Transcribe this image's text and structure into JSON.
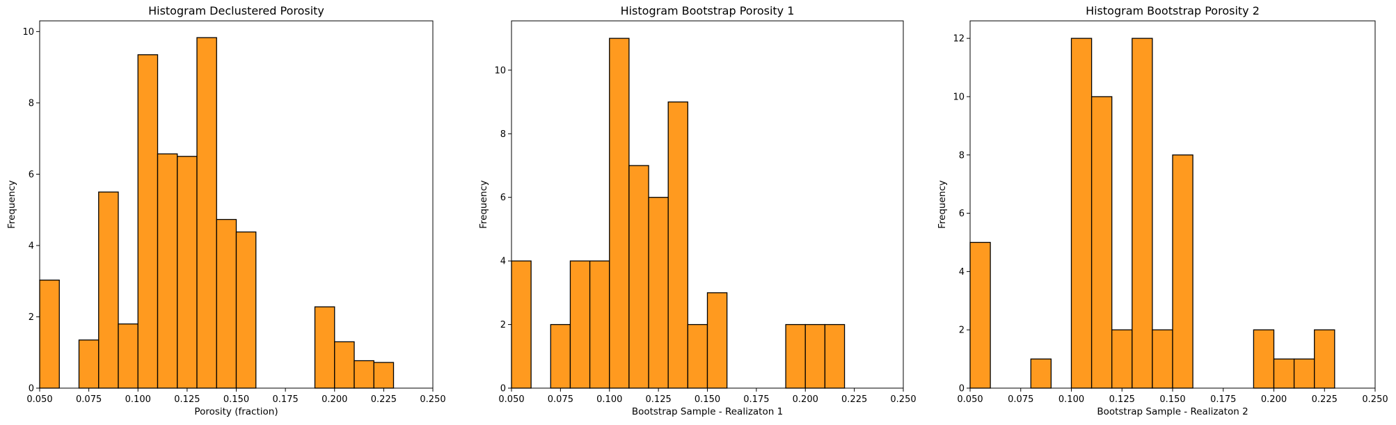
{
  "bar_color": "#ff9a1f",
  "bar_edge": "#000000",
  "charts": [
    {
      "title": "Histogram Declustered Porosity",
      "xlabel": "Porosity (fraction)",
      "ylabel": "Frequency",
      "xticks": [
        "0.050",
        "0.075",
        "0.100",
        "0.125",
        "0.150",
        "0.175",
        "0.200",
        "0.225",
        "0.250"
      ],
      "yticks": [
        "0",
        "2",
        "4",
        "6",
        "8",
        "10"
      ]
    },
    {
      "title": "Histogram Bootstrap Porosity 1",
      "xlabel": "Bootstrap Sample - Realizaton 1",
      "ylabel": "Frequency",
      "xticks": [
        "0.050",
        "0.075",
        "0.100",
        "0.125",
        "0.150",
        "0.175",
        "0.200",
        "0.225",
        "0.250"
      ],
      "yticks": [
        "0",
        "2",
        "4",
        "6",
        "8",
        "10"
      ]
    },
    {
      "title": "Histogram Bootstrap Porosity 2",
      "xlabel": "Bootstrap Sample - Realizaton 2",
      "ylabel": "Frequency",
      "xticks": [
        "0.050",
        "0.075",
        "0.100",
        "0.125",
        "0.150",
        "0.175",
        "0.200",
        "0.225",
        "0.250"
      ],
      "yticks": [
        "0",
        "2",
        "4",
        "6",
        "8",
        "10",
        "12"
      ]
    }
  ],
  "chart_data": [
    {
      "type": "bar",
      "title": "Histogram Declustered Porosity",
      "xlabel": "Porosity (fraction)",
      "ylabel": "Frequency",
      "xlim": [
        0.05,
        0.25
      ],
      "ylim": [
        0,
        10.3
      ],
      "bin_edges": [
        0.05,
        0.06,
        0.07,
        0.08,
        0.09,
        0.1,
        0.11,
        0.12,
        0.13,
        0.14,
        0.15,
        0.16,
        0.17,
        0.18,
        0.19,
        0.2,
        0.21,
        0.22,
        0.23
      ],
      "values": [
        3.03,
        0,
        1.35,
        5.5,
        1.8,
        9.35,
        6.57,
        6.5,
        9.83,
        4.73,
        4.38,
        0,
        0,
        0,
        2.28,
        1.3,
        0.77,
        0.72
      ]
    },
    {
      "type": "bar",
      "title": "Histogram Bootstrap Porosity 1",
      "xlabel": "Bootstrap Sample - Realizaton 1",
      "ylabel": "Frequency",
      "xlim": [
        0.05,
        0.25
      ],
      "ylim": [
        0,
        11.55
      ],
      "bin_edges": [
        0.05,
        0.06,
        0.07,
        0.08,
        0.09,
        0.1,
        0.11,
        0.12,
        0.13,
        0.14,
        0.15,
        0.16,
        0.17,
        0.18,
        0.19,
        0.2,
        0.21,
        0.22
      ],
      "values": [
        4,
        0,
        2,
        4,
        4,
        11,
        7,
        6,
        9,
        2,
        3,
        0,
        0,
        0,
        2,
        2,
        2
      ]
    },
    {
      "type": "bar",
      "title": "Histogram Bootstrap Porosity 2",
      "xlabel": "Bootstrap Sample - Realizaton 2",
      "ylabel": "Frequency",
      "xlim": [
        0.05,
        0.25
      ],
      "ylim": [
        0,
        12.6
      ],
      "bin_edges": [
        0.05,
        0.06,
        0.07,
        0.08,
        0.09,
        0.1,
        0.11,
        0.12,
        0.13,
        0.14,
        0.15,
        0.16,
        0.17,
        0.18,
        0.19,
        0.2,
        0.21,
        0.22,
        0.23
      ],
      "values": [
        5,
        0,
        0,
        1,
        0,
        12,
        10,
        2,
        12,
        2,
        8,
        0,
        0,
        0,
        2,
        1,
        1,
        2
      ]
    }
  ]
}
